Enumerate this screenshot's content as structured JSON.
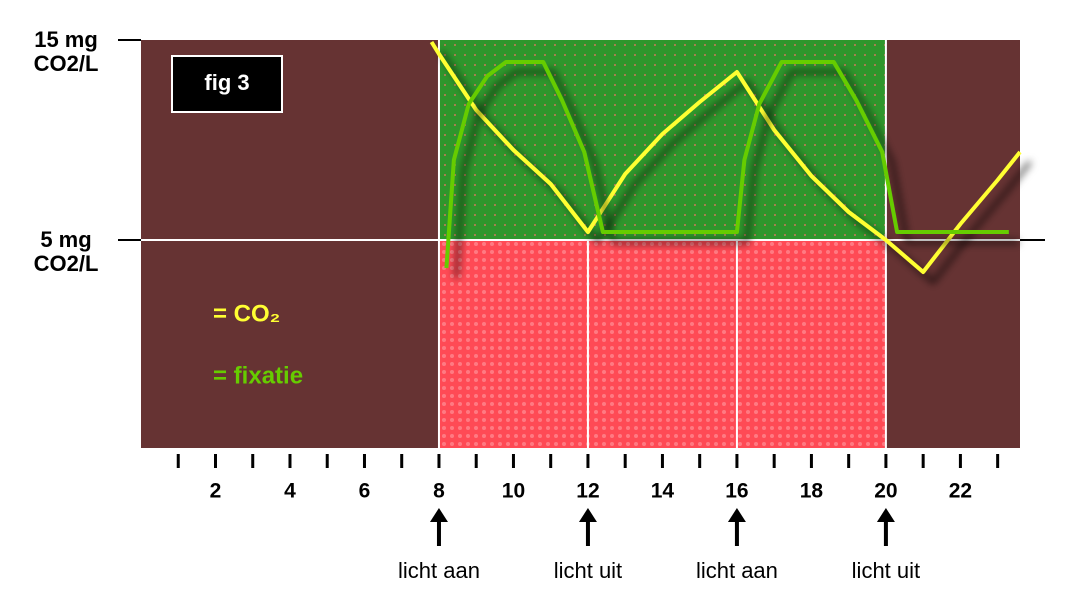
{
  "chart_data": {
    "type": "line",
    "title": "fig 3",
    "xlim": [
      0,
      23.6
    ],
    "ylim": [
      -5.4,
      15
    ],
    "xticks": [
      2,
      4,
      6,
      8,
      10,
      12,
      14,
      16,
      18,
      20,
      22
    ],
    "xminorticks": [
      1,
      3,
      5,
      7,
      9,
      11,
      13,
      15,
      17,
      19,
      21,
      23
    ],
    "yticks": [
      {
        "value": 15,
        "label": "15 mg CO2/L"
      },
      {
        "value": 5,
        "label": "5 mg CO2/L"
      }
    ],
    "annotations": [
      {
        "x": 8,
        "text": "licht aan"
      },
      {
        "x": 12,
        "text": "licht uit"
      },
      {
        "x": 16,
        "text": "licht aan"
      },
      {
        "x": 20,
        "text": "licht uit"
      }
    ],
    "series": [
      {
        "name": "= CO₂",
        "color": "#ffff33",
        "x": [
          7.8,
          8,
          9,
          10,
          11,
          12,
          13,
          14,
          15,
          16,
          17,
          18,
          19,
          20,
          21,
          22,
          23,
          23.6
        ],
        "values": [
          14.9,
          14.3,
          11.5,
          9.5,
          7.8,
          5.4,
          8.3,
          10.3,
          11.9,
          13.4,
          10.5,
          8.2,
          6.4,
          5.0,
          3.4,
          5.8,
          8.0,
          9.4
        ]
      },
      {
        "name": "= fixatie",
        "color": "#66cc00",
        "x": [
          8.2,
          8.4,
          8.8,
          9.3,
          9.8,
          10.8,
          11.3,
          11.9,
          12.4,
          16.0,
          16.2,
          16.6,
          17.2,
          18.6,
          19.2,
          19.9,
          20.3,
          23.3
        ],
        "values": [
          3.6,
          9,
          11.8,
          13.2,
          13.9,
          13.9,
          12,
          9.4,
          5.4,
          5.4,
          9,
          11.8,
          13.9,
          13.9,
          12,
          9.4,
          5.4,
          5.4
        ]
      }
    ]
  }
}
